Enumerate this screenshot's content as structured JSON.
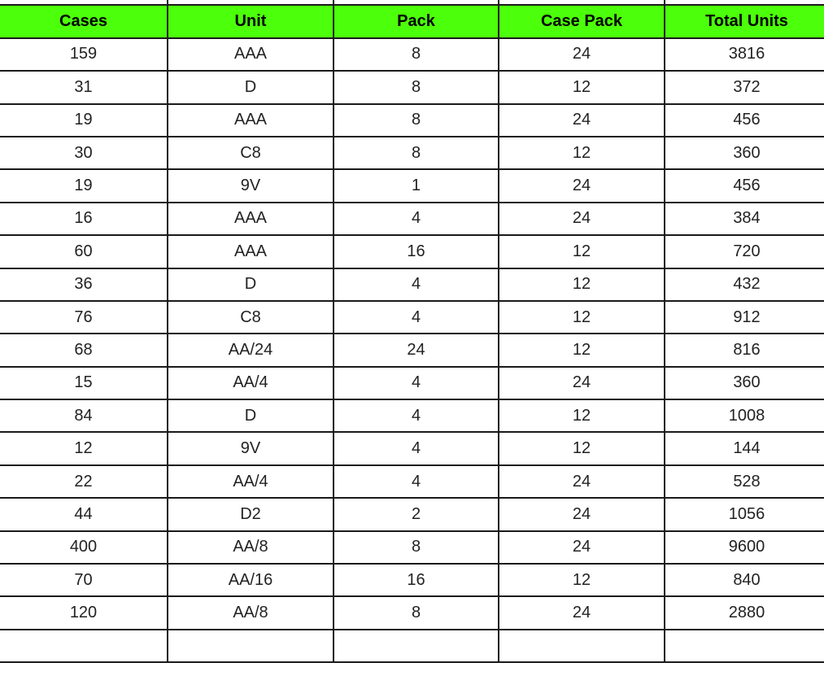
{
  "colors": {
    "header_bg": "#4cff0a"
  },
  "headers": [
    "Cases",
    "Unit",
    "Pack",
    "Case Pack",
    "Total Units"
  ],
  "rows": [
    [
      "159",
      "AAA",
      "8",
      "24",
      "3816"
    ],
    [
      "31",
      "D",
      "8",
      "12",
      "372"
    ],
    [
      "19",
      "AAA",
      "8",
      "24",
      "456"
    ],
    [
      "30",
      "C8",
      "8",
      "12",
      "360"
    ],
    [
      "19",
      "9V",
      "1",
      "24",
      "456"
    ],
    [
      "16",
      "AAA",
      "4",
      "24",
      "384"
    ],
    [
      "60",
      "AAA",
      "16",
      "12",
      "720"
    ],
    [
      "36",
      "D",
      "4",
      "12",
      "432"
    ],
    [
      "76",
      "C8",
      "4",
      "12",
      "912"
    ],
    [
      "68",
      "AA/24",
      "24",
      "12",
      "816"
    ],
    [
      "15",
      "AA/4",
      "4",
      "24",
      "360"
    ],
    [
      "84",
      "D",
      "4",
      "12",
      "1008"
    ],
    [
      "12",
      "9V",
      "4",
      "12",
      "144"
    ],
    [
      "22",
      "AA/4",
      "4",
      "24",
      "528"
    ],
    [
      "44",
      "D2",
      "2",
      "24",
      "1056"
    ],
    [
      "400",
      "AA/8",
      "8",
      "24",
      "9600"
    ],
    [
      "70",
      "AA/16",
      "16",
      "12",
      "840"
    ],
    [
      "120",
      "AA/8",
      "8",
      "24",
      "2880"
    ]
  ]
}
